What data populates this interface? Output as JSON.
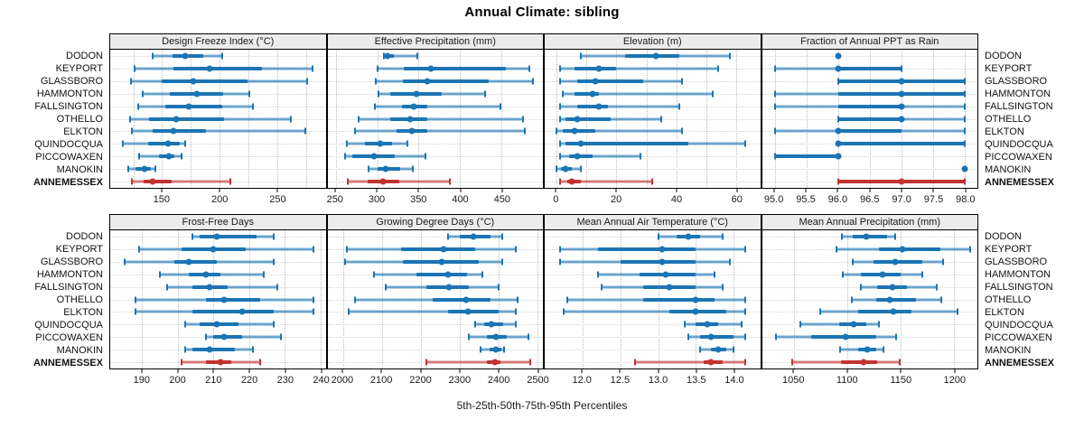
{
  "colors": {
    "series": "#1b75b4",
    "highlight": "#c23231",
    "strip_bg": "#ececec",
    "grid": "#c9c9c9",
    "axis_text": "#1a1a1a"
  },
  "chart_data": {
    "type": "dotplot-intervals",
    "title": "Annual Climate: sibling",
    "caption": "5th-25th-50th-75th-95th Percentiles",
    "percentiles": [
      5,
      25,
      50,
      75,
      95
    ],
    "legend_position": "none",
    "grid": "dotted",
    "rows": [
      "DODON",
      "KEYPORT",
      "GLASSBORO",
      "HAMMONTON",
      "FALLSINGTON",
      "OTHELLO",
      "ELKTON",
      "QUINDOCQUA",
      "PICCOWAXEN",
      "MANOKIN",
      "ANNEMESSEX"
    ],
    "highlight_row": "ANNEMESSEX",
    "panels": [
      {
        "title": "Design Freeze Index (°C)",
        "xlim": [
          105,
          292
        ],
        "ticks": [
          150,
          200,
          250
        ],
        "tick_labels": [
          "150",
          "200",
          "250"
        ],
        "grid": [
          125,
          150,
          175,
          200,
          225,
          250,
          275
        ],
        "values": [
          [
            142,
            159,
            170,
            186,
            202
          ],
          [
            126,
            160,
            191,
            237,
            281
          ],
          [
            123,
            150,
            177,
            224,
            276
          ],
          [
            133,
            157,
            180,
            203,
            226
          ],
          [
            129,
            153,
            173,
            202,
            229
          ],
          [
            122,
            139,
            162,
            204,
            262
          ],
          [
            124,
            142,
            160,
            188,
            274
          ],
          [
            116,
            138,
            155,
            165,
            170
          ],
          [
            130,
            147,
            156,
            161,
            167
          ],
          [
            121,
            127,
            135,
            140,
            144
          ],
          [
            124,
            134,
            142,
            158,
            209
          ]
        ]
      },
      {
        "title": "Effective Precipitation (mm)",
        "xlim": [
          240,
          500
        ],
        "ticks": [
          250,
          300,
          350,
          400,
          450
        ],
        "tick_labels": [
          "250",
          "300",
          "350",
          "400",
          "450"
        ],
        "grid": [
          250,
          300,
          350,
          400,
          450
        ],
        "values": [
          [
            308,
            310,
            313,
            320,
            348
          ],
          [
            301,
            332,
            365,
            455,
            484
          ],
          [
            298,
            331,
            360,
            435,
            488
          ],
          [
            302,
            316,
            347,
            378,
            430
          ],
          [
            297,
            330,
            344,
            361,
            449
          ],
          [
            278,
            316,
            340,
            360,
            476
          ],
          [
            273,
            323,
            342,
            360,
            478
          ],
          [
            263,
            285,
            304,
            318,
            337
          ],
          [
            261,
            270,
            296,
            321,
            358
          ],
          [
            290,
            301,
            310,
            328,
            343
          ],
          [
            265,
            289,
            307,
            327,
            388
          ]
        ]
      },
      {
        "title": "Elevation (m)",
        "xlim": [
          -4,
          68
        ],
        "ticks": [
          0,
          20,
          40,
          60
        ],
        "tick_labels": [
          "0",
          "20",
          "40",
          "60"
        ],
        "grid": [
          0,
          10,
          20,
          30,
          40,
          50,
          60
        ],
        "values": [
          [
            8,
            23,
            33,
            41,
            58
          ],
          [
            1,
            6,
            14,
            20,
            54
          ],
          [
            1,
            7,
            13,
            29,
            42
          ],
          [
            2,
            6,
            12,
            14,
            52
          ],
          [
            1,
            7,
            14,
            17,
            41
          ],
          [
            1,
            3,
            7,
            18,
            35
          ],
          [
            0,
            2,
            6,
            13,
            42
          ],
          [
            1,
            3,
            8,
            44,
            63
          ],
          [
            1,
            4,
            7,
            12,
            28
          ],
          [
            0,
            1.5,
            3,
            5,
            8
          ],
          [
            1,
            3.5,
            5,
            8,
            32
          ]
        ]
      },
      {
        "title": "Fraction of Annual PPT as Rain",
        "xlim": [
          94.8,
          98.2
        ],
        "ticks": [
          95.0,
          95.5,
          96.0,
          96.5,
          97.0,
          97.5,
          98.0
        ],
        "tick_labels": [
          "95.0",
          "95.5",
          "96.0",
          "96.5",
          "97.0",
          "97.5",
          "98.0"
        ],
        "grid": [
          95.0,
          95.5,
          96.0,
          96.5,
          97.0,
          97.5,
          98.0
        ],
        "values": [
          [
            96,
            96,
            96,
            96,
            96
          ],
          [
            95,
            96,
            96,
            97,
            97
          ],
          [
            96,
            96,
            97,
            98,
            98
          ],
          [
            95,
            96,
            97,
            98,
            98
          ],
          [
            95,
            96,
            97,
            97,
            98
          ],
          [
            96,
            96,
            97,
            97,
            98
          ],
          [
            95,
            96,
            96,
            97,
            98
          ],
          [
            96,
            96,
            96,
            98,
            98
          ],
          [
            95,
            95,
            96,
            96,
            96
          ],
          [
            98,
            98,
            98,
            98,
            98
          ],
          [
            96,
            96,
            97,
            98,
            98
          ]
        ]
      },
      {
        "title": "Frost-Free Days",
        "xlim": [
          181,
          241.5
        ],
        "ticks": [
          190,
          200,
          210,
          220,
          230,
          240
        ],
        "tick_labels": [
          "190",
          "200",
          "210",
          "220",
          "230",
          "240"
        ],
        "grid": [
          190,
          200,
          210,
          220,
          230,
          240
        ],
        "values": [
          [
            204,
            206,
            211,
            222,
            227
          ],
          [
            189,
            201,
            210,
            219,
            238
          ],
          [
            185,
            199,
            203,
            211,
            227
          ],
          [
            195,
            203,
            208,
            212,
            224
          ],
          [
            197,
            204,
            209,
            214,
            228
          ],
          [
            188,
            208,
            213,
            223,
            238
          ],
          [
            188,
            204,
            218,
            227,
            238
          ],
          [
            202,
            206,
            211,
            217,
            227
          ],
          [
            208,
            210,
            213,
            218,
            229
          ],
          [
            202,
            204,
            209,
            216,
            221
          ],
          [
            201,
            208,
            212,
            215,
            223
          ]
        ]
      },
      {
        "title": "Growing Degree Days (°C)",
        "xlim": [
          1960,
          2515
        ],
        "ticks": [
          2000,
          2100,
          2200,
          2300,
          2400,
          2500
        ],
        "tick_labels": [
          "2000",
          "2100",
          "2200",
          "2300",
          "2400",
          "2500"
        ],
        "grid": [
          2000,
          2100,
          2200,
          2300,
          2400,
          2500
        ],
        "values": [
          [
            2270,
            2300,
            2335,
            2380,
            2410
          ],
          [
            2010,
            2150,
            2260,
            2340,
            2445
          ],
          [
            2005,
            2155,
            2255,
            2350,
            2410
          ],
          [
            2080,
            2190,
            2270,
            2320,
            2360
          ],
          [
            2110,
            2215,
            2273,
            2325,
            2400
          ],
          [
            2030,
            2230,
            2317,
            2380,
            2450
          ],
          [
            2015,
            2270,
            2323,
            2400,
            2445
          ],
          [
            2340,
            2363,
            2383,
            2412,
            2445
          ],
          [
            2325,
            2370,
            2395,
            2423,
            2478
          ],
          [
            2355,
            2378,
            2395,
            2407,
            2415
          ],
          [
            2215,
            2370,
            2392,
            2406,
            2483
          ]
        ]
      },
      {
        "title": "Mean Annual Air Temperature (°C)",
        "xlim": [
          11.5,
          14.35
        ],
        "ticks": [
          12.0,
          12.5,
          13.0,
          13.5,
          14.0
        ],
        "tick_labels": [
          "12.0",
          "12.5",
          "13.0",
          "13.5",
          "14.0"
        ],
        "grid": [
          12.0,
          12.5,
          13.0,
          13.5,
          14.0
        ],
        "values": [
          [
            13.0,
            13.25,
            13.4,
            13.55,
            13.85
          ],
          [
            11.7,
            12.2,
            13.05,
            13.5,
            14.15
          ],
          [
            11.7,
            12.5,
            13.05,
            13.5,
            13.95
          ],
          [
            12.2,
            12.75,
            13.1,
            13.5,
            13.75
          ],
          [
            12.25,
            12.8,
            13.15,
            13.5,
            13.85
          ],
          [
            11.8,
            12.8,
            13.5,
            13.75,
            14.15
          ],
          [
            11.75,
            13.15,
            13.5,
            13.9,
            14.15
          ],
          [
            13.35,
            13.5,
            13.65,
            13.8,
            14.1
          ],
          [
            13.4,
            13.55,
            13.7,
            14.0,
            14.15
          ],
          [
            13.55,
            13.7,
            13.8,
            13.9,
            14.0
          ],
          [
            12.7,
            13.6,
            13.7,
            13.85,
            14.15
          ]
        ]
      },
      {
        "title": "Mean Annual Precipitation (mm)",
        "xlim": [
          1020,
          1222
        ],
        "ticks": [
          1050,
          1100,
          1150,
          1200
        ],
        "tick_labels": [
          "1050",
          "1100",
          "1150",
          "1200"
        ],
        "grid": [
          1050,
          1100,
          1150,
          1200
        ],
        "values": [
          [
            1095,
            1105,
            1118,
            1137,
            1145
          ],
          [
            1090,
            1130,
            1152,
            1187,
            1215
          ],
          [
            1105,
            1125,
            1145,
            1170,
            1190
          ],
          [
            1096,
            1113,
            1133,
            1150,
            1170
          ],
          [
            1113,
            1128,
            1142,
            1156,
            1184
          ],
          [
            1104,
            1127,
            1140,
            1164,
            1188
          ],
          [
            1075,
            1110,
            1143,
            1160,
            1203
          ],
          [
            1056,
            1092,
            1106,
            1118,
            1130
          ],
          [
            1033,
            1066,
            1098,
            1127,
            1146
          ],
          [
            1093,
            1110,
            1119,
            1127,
            1134
          ],
          [
            1048,
            1094,
            1115,
            1128,
            1149
          ]
        ]
      }
    ]
  }
}
